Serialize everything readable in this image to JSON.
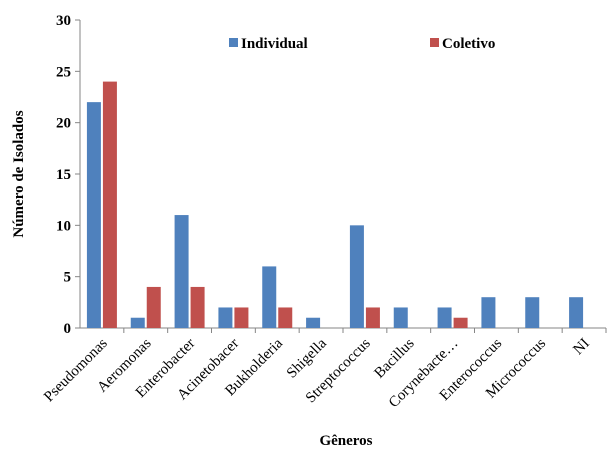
{
  "chart_data": {
    "type": "bar",
    "xlabel": "Gêneros",
    "ylabel": "Número de Isolados",
    "ylim": [
      0,
      30
    ],
    "yticks": [
      0,
      5,
      10,
      15,
      20,
      25,
      30
    ],
    "legend_position": "top",
    "categories": [
      "Pseudomonas",
      "Aeromonas",
      "Enterobacter",
      "Acinetobacer",
      "Bukholderia",
      "Shigella",
      "Streptococcus",
      "Bacillus",
      "Corynebacte…",
      "Enterococcus",
      "Micrococcus",
      "NI"
    ],
    "series": [
      {
        "name": "Individual",
        "color": "#4F81BD",
        "values": [
          22,
          1,
          11,
          2,
          6,
          1,
          10,
          2,
          2,
          3,
          3,
          3
        ]
      },
      {
        "name": "Coletivo",
        "color": "#C0504D",
        "values": [
          24,
          4,
          4,
          2,
          2,
          0,
          2,
          0,
          1,
          0,
          0,
          0
        ]
      }
    ]
  }
}
